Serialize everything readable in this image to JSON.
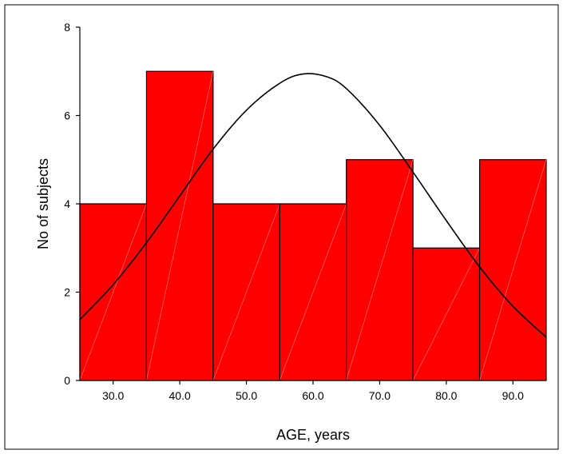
{
  "chart_data": {
    "type": "bar",
    "title": "",
    "xlabel": "AGE, years",
    "ylabel": "No of subjects",
    "bin_edges": [
      25,
      35,
      45,
      55,
      65,
      75,
      85,
      95
    ],
    "categories": [
      "30.0",
      "40.0",
      "50.0",
      "60.0",
      "70.0",
      "80.0",
      "90.0"
    ],
    "values": [
      4,
      7,
      4,
      4,
      5,
      3,
      5
    ],
    "xticks": [
      30,
      40,
      50,
      60,
      70,
      80,
      90
    ],
    "xtick_labels": [
      "30.0",
      "40.0",
      "50.0",
      "60.0",
      "70.0",
      "80.0",
      "90.0"
    ],
    "yticks": [
      0,
      2,
      4,
      6,
      8
    ],
    "ytick_labels": [
      "0",
      "2",
      "4",
      "6",
      "8"
    ],
    "xlim": [
      25,
      95
    ],
    "ylim": [
      0,
      8
    ],
    "grid": false,
    "overlay": {
      "type": "normal-curve",
      "x": [
        25,
        30,
        35,
        40,
        45,
        50,
        55,
        58.5,
        62,
        65,
        70,
        75,
        80,
        85,
        90,
        95
      ],
      "y": [
        1.38,
        2.17,
        3.12,
        4.18,
        5.24,
        6.12,
        6.73,
        6.94,
        6.88,
        6.61,
        5.78,
        4.72,
        3.62,
        2.57,
        1.68,
        0.98
      ]
    },
    "colors": {
      "bar_fill": "#ff0000",
      "bar_stroke": "#000000",
      "curve": "#000000"
    }
  }
}
